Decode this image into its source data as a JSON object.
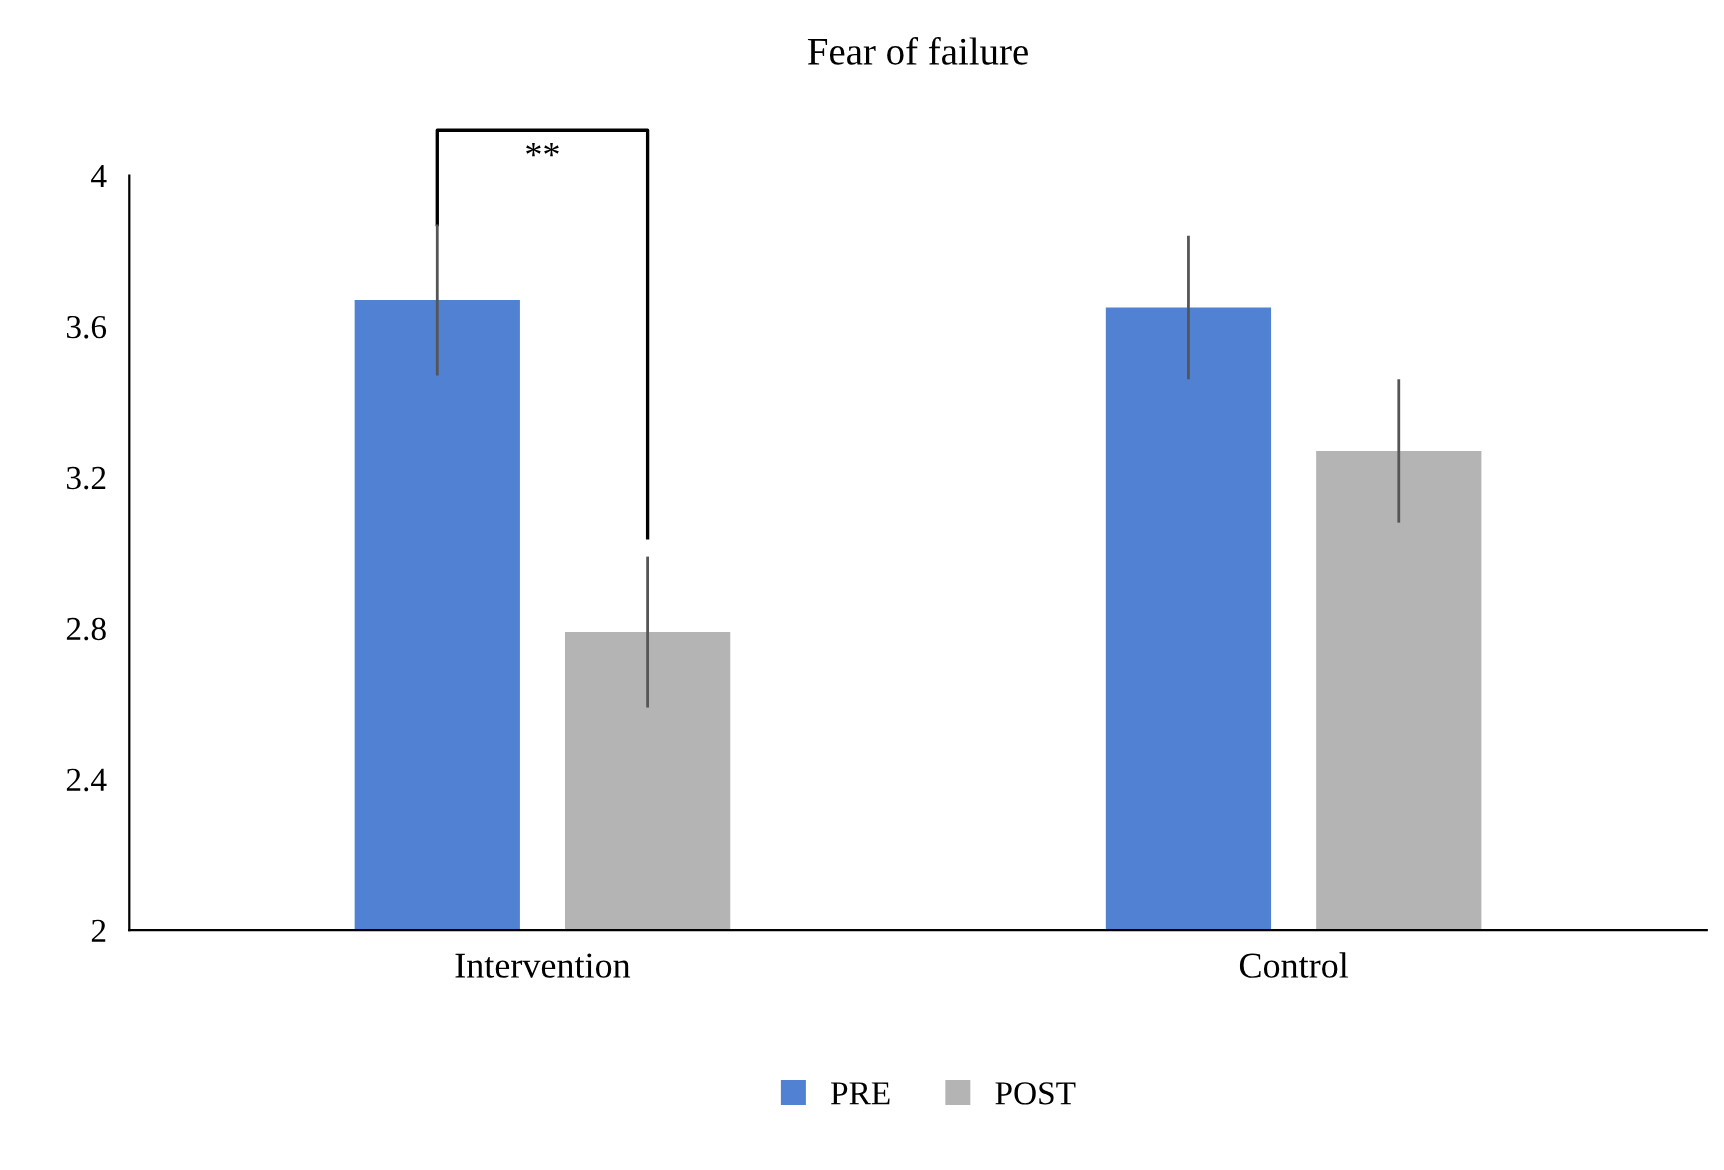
{
  "chart_data": {
    "type": "bar",
    "title": "Fear of failure",
    "categories": [
      "Intervention",
      "Control"
    ],
    "series": [
      {
        "name": "PRE",
        "color": "#5081d2",
        "values": [
          3.67,
          3.65
        ],
        "errors": [
          0.2,
          0.19
        ]
      },
      {
        "name": "POST",
        "color": "#b4b4b4",
        "values": [
          2.79,
          3.27
        ],
        "errors": [
          0.2,
          0.19
        ]
      }
    ],
    "ylim": [
      2,
      4
    ],
    "yticks": [
      2,
      2.4,
      2.8,
      3.2,
      3.6,
      4
    ],
    "grid": false,
    "legend": "bottom",
    "annotations": [
      "**"
    ]
  }
}
